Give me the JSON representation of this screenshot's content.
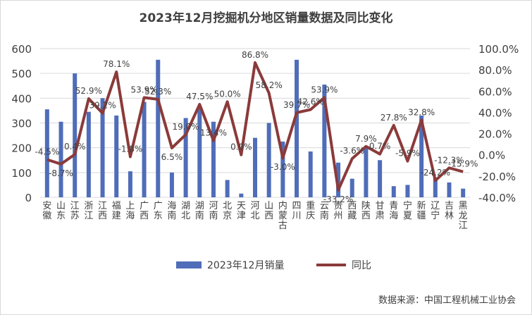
{
  "chart_data": {
    "type": "bar+line",
    "title": "2023年12月挖掘机分地区销量数据及同比变化",
    "categories": [
      "安徽",
      "山东",
      "江苏",
      "浙江",
      "江西",
      "福建",
      "上海",
      "广西",
      "广东",
      "海南",
      "湖北",
      "湖南",
      "河南",
      "北京",
      "天津",
      "河北",
      "山西",
      "内蒙古",
      "四川",
      "重庆",
      "云南",
      "贵州",
      "西藏",
      "陕西",
      "甘肃",
      "青海",
      "宁夏",
      "新疆",
      "辽宁",
      "吉林",
      "黑龙江"
    ],
    "series": [
      {
        "name": "2023年12月销量",
        "type": "bar",
        "axis": "left",
        "color": "#4f6db8",
        "values": [
          355,
          305,
          500,
          345,
          400,
          330,
          105,
          385,
          555,
          100,
          320,
          360,
          305,
          70,
          15,
          240,
          300,
          225,
          555,
          185,
          455,
          140,
          75,
          200,
          150,
          45,
          50,
          330,
          80,
          60,
          35
        ]
      },
      {
        "name": "同比",
        "type": "line",
        "axis": "right",
        "color": "#8b3a3a",
        "values": [
          -4.5,
          -8.7,
          0.4,
          52.9,
          39.2,
          78.1,
          -1.8,
          53.9,
          52.3,
          6.5,
          19.0,
          47.5,
          13.4,
          50.0,
          0.0,
          86.8,
          58.2,
          -3.0,
          39.7,
          42.6,
          53.9,
          -33.2,
          -3.6,
          7.9,
          0.7,
          27.8,
          -5.9,
          32.8,
          -24.2,
          -12.3,
          -15.9
        ],
        "labels": [
          "-4.5%",
          "-8.7%",
          "0.4%",
          "52.9%",
          "39.2%",
          "78.1%",
          "-1.8%",
          "53.9%",
          "52.3%",
          "6.5%",
          "19.0%",
          "47.5%",
          "13.4%",
          "50.0%",
          "0.0%",
          "86.8%",
          "58.2%",
          "-3.0%",
          "39.7%",
          "42.6%",
          "53.9%",
          "-33.2%",
          "-3.6%",
          "7.9%",
          "0.7%",
          "27.8%",
          "-5.9%",
          "32.8%",
          "-24.2%",
          "-12.3%",
          "-15.9%"
        ]
      }
    ],
    "y_left": {
      "min": 0,
      "max": 600,
      "ticks": [
        "0",
        "100",
        "200",
        "300",
        "400",
        "500",
        "600"
      ]
    },
    "y_right": {
      "min": -40,
      "max": 100,
      "ticks": [
        "-40.0%",
        "-20.0%",
        "0.0%",
        "20.0%",
        "40.0%",
        "60.0%",
        "80.0%",
        "100.0%"
      ]
    },
    "grid": true,
    "legend_position": "bottom"
  },
  "source_text": "数据来源：中国工程机械工业协会"
}
